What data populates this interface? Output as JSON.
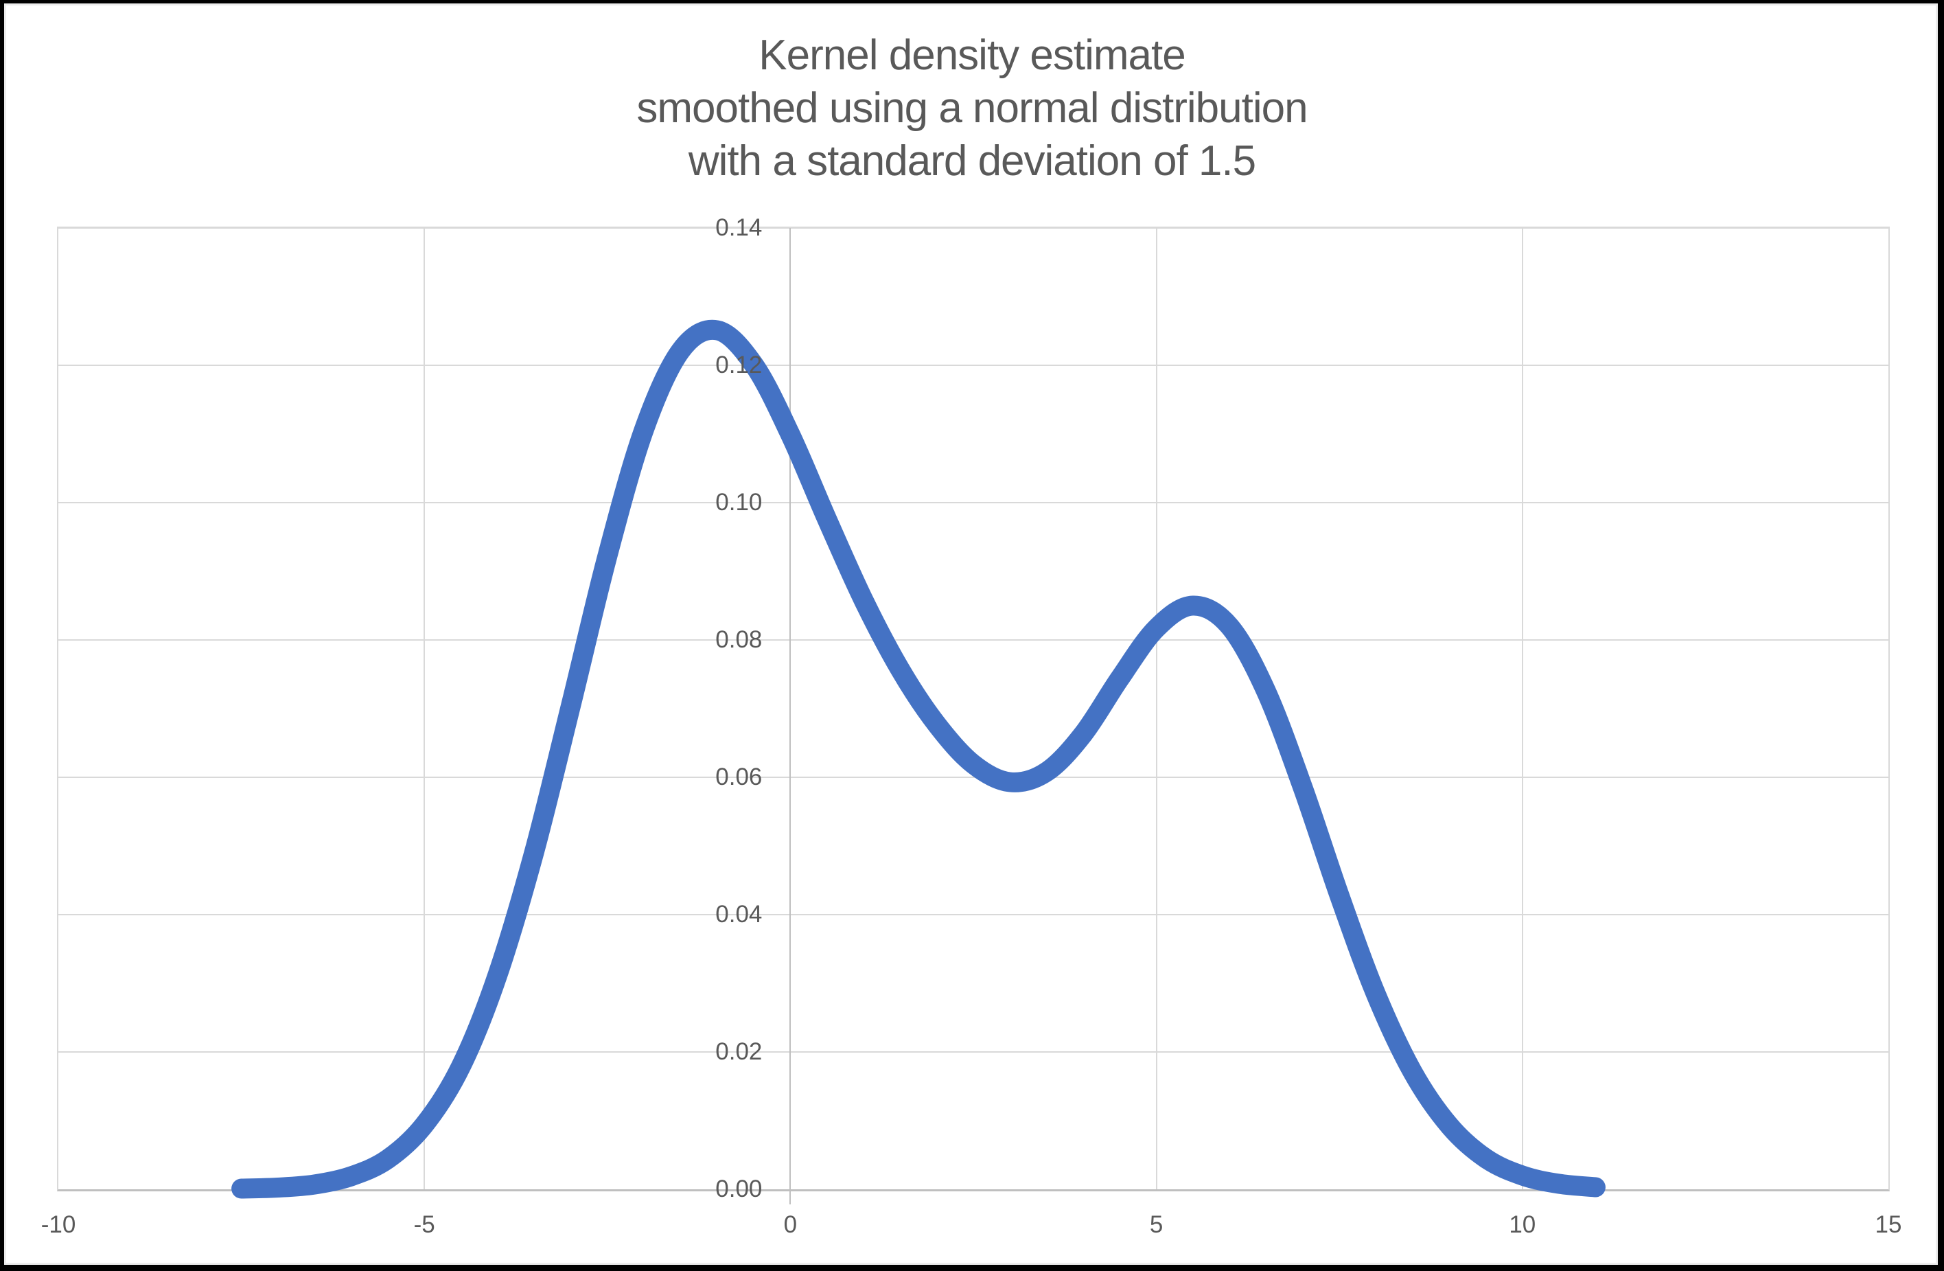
{
  "title": {
    "lines": [
      "Kernel density estimate",
      "smoothed using a normal distribution",
      "with a standard deviation of 1.5"
    ]
  },
  "colors": {
    "curve": "#4472C4",
    "gridline": "#D9D9D9",
    "axis_line": "#BFBFBF",
    "text": "#595959",
    "background": "#FFFFFF",
    "frame": "#000000"
  },
  "chart_data": {
    "type": "line",
    "title": "Kernel density estimate smoothed using a normal distribution with a standard deviation of 1.5",
    "xlabel": "",
    "ylabel": "",
    "xlim": [
      -10,
      15
    ],
    "ylim": [
      0,
      0.14
    ],
    "grid": true,
    "legend": "none",
    "kernel": "normal",
    "bandwidth_stddev": 1.5,
    "x_ticks": [
      {
        "value": -10,
        "label": "-10"
      },
      {
        "value": -5,
        "label": "-5"
      },
      {
        "value": 0,
        "label": "0"
      },
      {
        "value": 5,
        "label": "5"
      },
      {
        "value": 10,
        "label": "10"
      },
      {
        "value": 15,
        "label": "15"
      }
    ],
    "y_ticks": [
      {
        "value": 0.0,
        "label": "0.00"
      },
      {
        "value": 0.02,
        "label": "0.02"
      },
      {
        "value": 0.04,
        "label": "0.04"
      },
      {
        "value": 0.06,
        "label": "0.06"
      },
      {
        "value": 0.08,
        "label": "0.08"
      },
      {
        "value": 0.1,
        "label": "0.10"
      },
      {
        "value": 0.12,
        "label": "0.12"
      },
      {
        "value": 0.14,
        "label": "0.14"
      }
    ],
    "series": [
      {
        "name": "kernel-density-estimate",
        "color": "#4472C4",
        "stroke_width": 29,
        "points": [
          [
            -7.5,
            0.0001
          ],
          [
            -7.0,
            0.00025
          ],
          [
            -6.5,
            0.0007
          ],
          [
            -6.0,
            0.0019
          ],
          [
            -5.5,
            0.0044
          ],
          [
            -5.0,
            0.0094
          ],
          [
            -4.5,
            0.0179
          ],
          [
            -4.0,
            0.0312
          ],
          [
            -3.5,
            0.0491
          ],
          [
            -3.0,
            0.0704
          ],
          [
            -2.5,
            0.0922
          ],
          [
            -2.0,
            0.1106
          ],
          [
            -1.5,
            0.1221
          ],
          [
            -1.0,
            0.1251
          ],
          [
            -0.5,
            0.1201
          ],
          [
            0.0,
            0.1099
          ],
          [
            0.5,
            0.0976
          ],
          [
            1.0,
            0.0858
          ],
          [
            1.5,
            0.0757
          ],
          [
            2.0,
            0.0677
          ],
          [
            2.5,
            0.0619
          ],
          [
            3.0,
            0.0593
          ],
          [
            3.5,
            0.0608
          ],
          [
            4.0,
            0.0663
          ],
          [
            4.5,
            0.0744
          ],
          [
            5.0,
            0.0817
          ],
          [
            5.5,
            0.085
          ],
          [
            6.0,
            0.082
          ],
          [
            6.5,
            0.0725
          ],
          [
            7.0,
            0.0585
          ],
          [
            7.5,
            0.0428
          ],
          [
            8.0,
            0.0284
          ],
          [
            8.5,
            0.0171
          ],
          [
            9.0,
            0.0093
          ],
          [
            9.5,
            0.0045
          ],
          [
            10.0,
            0.002
          ],
          [
            10.5,
            0.0008
          ],
          [
            11.0,
            0.0003
          ]
        ]
      }
    ]
  }
}
